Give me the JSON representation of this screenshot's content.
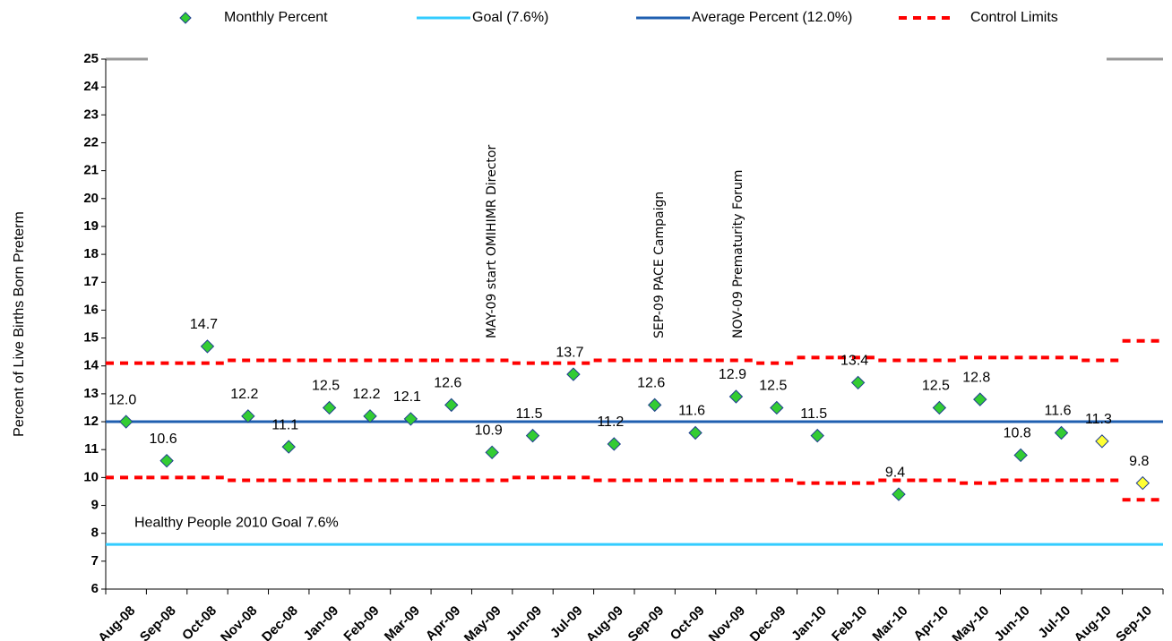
{
  "chart_data": {
    "type": "line",
    "y_label": "Percent of Live Births Born Preterm",
    "categories": [
      "Aug-08",
      "Sep-08",
      "Oct-08",
      "Nov-08",
      "Dec-08",
      "Jan-09",
      "Feb-09",
      "Mar-09",
      "Apr-09",
      "May-09",
      "Jun-09",
      "Jul-09",
      "Aug-09",
      "Sep-09",
      "Oct-09",
      "Nov-09",
      "Dec-09",
      "Jan-10",
      "Feb-10",
      "Mar-10",
      "Apr-10",
      "May-10",
      "Jun-10",
      "Jul-10",
      "Aug-10",
      "Sep-10"
    ],
    "ylim": [
      6,
      25
    ],
    "yticks": [
      6,
      7,
      8,
      9,
      10,
      11,
      12,
      13,
      14,
      15,
      16,
      17,
      18,
      19,
      20,
      21,
      22,
      23,
      24,
      25
    ],
    "series": [
      {
        "name": "Monthly Percent",
        "color": "#33cc33",
        "marker": "diamond",
        "values": [
          12.0,
          10.6,
          14.7,
          12.2,
          11.1,
          12.5,
          12.2,
          12.1,
          12.6,
          10.9,
          11.5,
          13.7,
          11.2,
          12.6,
          11.6,
          12.9,
          12.5,
          11.5,
          13.4,
          9.4,
          12.5,
          12.8,
          10.8,
          11.6,
          11.3,
          9.8
        ],
        "value_labels": [
          "12.0",
          "10.6",
          "14.7",
          "12.2",
          "11.1",
          "12.5",
          "12.2",
          "12.1",
          "12.6",
          "10.9",
          "11.5",
          "13.7",
          "11.2",
          "12.6",
          "11.6",
          "12.9",
          "12.5",
          "11.5",
          "13.4",
          "9.4",
          "12.5",
          "12.8",
          "10.8",
          "11.6",
          "11.3",
          "9.8"
        ],
        "point_colors": [
          "#33cc33",
          "#33cc33",
          "#33cc33",
          "#33cc33",
          "#33cc33",
          "#33cc33",
          "#33cc33",
          "#33cc33",
          "#33cc33",
          "#33cc33",
          "#33cc33",
          "#33cc33",
          "#33cc33",
          "#33cc33",
          "#33cc33",
          "#33cc33",
          "#33cc33",
          "#33cc33",
          "#33cc33",
          "#33cc33",
          "#33cc33",
          "#33cc33",
          "#33cc33",
          "#33cc33",
          "#ffff33",
          "#ffff33"
        ]
      },
      {
        "name": "Goal (7.6%)",
        "color": "#33ccff",
        "value": 7.6
      },
      {
        "name": "Average Percent (12.0%)",
        "color": "#1f5fb0",
        "value": 12.0
      },
      {
        "name": "Control Limits",
        "color": "#ff0000",
        "dashed": true,
        "upper": [
          14.1,
          14.1,
          14.1,
          14.2,
          14.2,
          14.2,
          14.2,
          14.2,
          14.2,
          14.2,
          14.1,
          14.1,
          14.2,
          14.2,
          14.2,
          14.2,
          14.1,
          14.3,
          14.3,
          14.2,
          14.2,
          14.3,
          14.3,
          14.3,
          14.2,
          14.9
        ],
        "lower": [
          10.0,
          10.0,
          10.0,
          9.9,
          9.9,
          9.9,
          9.9,
          9.9,
          9.9,
          9.9,
          10.0,
          10.0,
          9.9,
          9.9,
          9.9,
          9.9,
          9.9,
          9.8,
          9.8,
          9.9,
          9.9,
          9.8,
          9.9,
          9.9,
          9.9,
          9.2
        ]
      }
    ],
    "annotations": [
      "MAY-09 start OMIHIMR Director",
      "SEP-09 PACE Campaign",
      "NOV-09 Prematurity Forum"
    ],
    "goal_label": "Healthy People 2010 Goal 7.6%"
  }
}
